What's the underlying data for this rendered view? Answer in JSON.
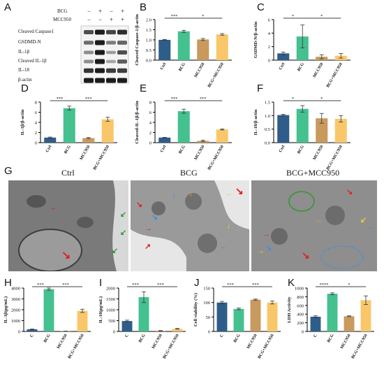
{
  "colors": {
    "ctrl": "#2e5d8a",
    "bcg": "#45c08f",
    "mcc950": "#c99a5d",
    "bcg_mcc950": "#f9c76a",
    "band": "#1c1c1c",
    "arrow_red": "#e02020",
    "arrow_green": "#2e9a2e",
    "arrow_blue": "#3a8fe0",
    "arrow_yellow": "#f2d21a"
  },
  "panel_letters": {
    "A": "A",
    "B": "B",
    "C": "C",
    "D": "D",
    "E": "E",
    "F": "F",
    "G": "G",
    "H": "H",
    "I": "I",
    "J": "J",
    "K": "K"
  },
  "western_blot": {
    "treatments": [
      {
        "label": "BCG",
        "marks": [
          "−",
          "+",
          "−",
          "+"
        ]
      },
      {
        "label": "MCC950",
        "marks": [
          "−",
          "−",
          "+",
          "+"
        ]
      }
    ],
    "rows": [
      {
        "label": "Cleaved Caspase1",
        "intensity": [
          0.7,
          1.0,
          0.75,
          0.9
        ]
      },
      {
        "label": "GSDMD-N",
        "intensity": [
          0.5,
          1.0,
          0.4,
          0.55
        ]
      },
      {
        "label": "IL-1β",
        "intensity": [
          0.3,
          1.0,
          0.2,
          0.7
        ]
      },
      {
        "label": "Cleaved IL-1β",
        "intensity": [
          0.3,
          1.0,
          0.15,
          0.6
        ]
      },
      {
        "label": "IL-18",
        "intensity": [
          0.85,
          1.0,
          0.8,
          0.8
        ]
      },
      {
        "label": "β-actin",
        "intensity": [
          1.0,
          1.0,
          1.0,
          1.0
        ]
      }
    ]
  },
  "tem": {
    "titles": [
      "Ctrl",
      "BCG",
      "BCG+MCC950"
    ]
  },
  "chart_data": [
    {
      "id": "B",
      "type": "bar",
      "categories": [
        "Ctrl",
        "BCG",
        "MCC950",
        "BCG+MCC950"
      ],
      "values": [
        1.0,
        1.42,
        1.02,
        1.27
      ],
      "errors": [
        0.02,
        0.05,
        0.05,
        0.04
      ],
      "ylabel": "Cleaved Caspase-1/β-actin",
      "ylim": [
        0,
        2.0
      ],
      "yticks": [
        "0.0",
        "0.5",
        "1.0",
        "1.5",
        "2.0"
      ],
      "sig": [
        {
          "from": 0,
          "to": 1,
          "label": "***"
        },
        {
          "from": 1,
          "to": 3,
          "label": "*"
        }
      ]
    },
    {
      "id": "C",
      "type": "bar",
      "categories": [
        "Ctrl",
        "BCG",
        "MCC950",
        "BCG+MCC950"
      ],
      "values": [
        1.0,
        3.5,
        0.5,
        0.65
      ],
      "errors": [
        0.2,
        1.7,
        0.3,
        0.35
      ],
      "ylabel": "GSDMD-N/β-actin",
      "ylim": [
        0,
        6
      ],
      "yticks": [
        "0",
        "2",
        "4",
        "6"
      ],
      "sig": [
        {
          "from": 0,
          "to": 1,
          "label": "*"
        },
        {
          "from": 1,
          "to": 3,
          "label": "*"
        }
      ]
    },
    {
      "id": "D",
      "type": "bar",
      "categories": [
        "Ctrl",
        "BCG",
        "MCC950",
        "BCG+MCC950"
      ],
      "values": [
        1.0,
        6.8,
        0.9,
        4.6
      ],
      "errors": [
        0.1,
        0.4,
        0.1,
        0.4
      ],
      "ylabel": "IL-1β/β-actin",
      "ylim": [
        0,
        8
      ],
      "yticks": [
        "0",
        "2",
        "4",
        "6",
        "8"
      ],
      "sig": [
        {
          "from": 0,
          "to": 1,
          "label": "***"
        },
        {
          "from": 1,
          "to": 3,
          "label": "***"
        }
      ]
    },
    {
      "id": "E",
      "type": "bar",
      "categories": [
        "Ctrl",
        "BCG",
        "MCC950",
        "BCG+MCC950"
      ],
      "values": [
        1.0,
        6.2,
        0.35,
        2.6
      ],
      "errors": [
        0.05,
        0.4,
        0.15,
        0.1
      ],
      "ylabel": "Cleaved-IL-1β/β-actin",
      "ylim": [
        0,
        8
      ],
      "yticks": [
        "0",
        "2",
        "4",
        "6",
        "8"
      ],
      "sig": [
        {
          "from": 0,
          "to": 1,
          "label": "***"
        },
        {
          "from": 1,
          "to": 3,
          "label": "***"
        }
      ]
    },
    {
      "id": "F",
      "type": "bar",
      "categories": [
        "Ctrl",
        "BCG",
        "MCC950",
        "BCG+MCC950"
      ],
      "values": [
        1.02,
        1.25,
        0.9,
        0.88
      ],
      "errors": [
        0.03,
        0.12,
        0.18,
        0.12
      ],
      "ylabel": "IL-18/β-actin",
      "ylim": [
        0,
        1.5
      ],
      "yticks": [
        "0.0",
        "0.5",
        "1.0",
        "1.5"
      ],
      "sig": [
        {
          "from": 0,
          "to": 1,
          "label": "*"
        },
        {
          "from": 1,
          "to": 3,
          "label": "*"
        }
      ]
    },
    {
      "id": "H",
      "type": "bar",
      "categories": [
        "C",
        "BCG",
        "MCC950",
        "BCG+MCC950"
      ],
      "values": [
        200,
        3900,
        20,
        1900
      ],
      "errors": [
        20,
        100,
        10,
        150
      ],
      "ylabel": "IL-1β(pg/mL)",
      "ylim": [
        0,
        4000
      ],
      "yticks": [
        "0",
        "1000",
        "2000",
        "3000",
        "4000"
      ],
      "sig": [
        {
          "from": 0,
          "to": 1,
          "label": "***"
        },
        {
          "from": 1,
          "to": 3,
          "label": "***"
        }
      ]
    },
    {
      "id": "I",
      "type": "bar",
      "categories": [
        "C",
        "BCG",
        "MCC950",
        "BCG+MCC950"
      ],
      "values": [
        480,
        1580,
        30,
        120
      ],
      "errors": [
        40,
        250,
        10,
        20
      ],
      "ylabel": "IL-18(pg/mL)",
      "ylim": [
        0,
        2000
      ],
      "yticks": [
        "0",
        "500",
        "1000",
        "1500",
        "2000"
      ],
      "sig": [
        {
          "from": 0,
          "to": 1,
          "label": "***"
        },
        {
          "from": 1,
          "to": 3,
          "label": "***"
        }
      ]
    },
    {
      "id": "J",
      "type": "bar",
      "categories": [
        "C",
        "BCG",
        "MCC950",
        "BCG+MCC950"
      ],
      "values": [
        100,
        78,
        110,
        100
      ],
      "errors": [
        4,
        3,
        2,
        5
      ],
      "ylabel": "Cell viability (%)",
      "ylim": [
        0,
        150
      ],
      "yticks": [
        "0",
        "50",
        "100",
        "150"
      ],
      "sig": [
        {
          "from": 0,
          "to": 1,
          "label": "***"
        },
        {
          "from": 1,
          "to": 3,
          "label": "***"
        }
      ]
    },
    {
      "id": "K",
      "type": "bar",
      "categories": [
        "C",
        "BCG",
        "MCC950",
        "BCG+MCC950"
      ],
      "values": [
        340,
        870,
        350,
        720
      ],
      "errors": [
        20,
        20,
        10,
        100
      ],
      "ylabel": "LDH Activity",
      "ylim": [
        0,
        1000
      ],
      "yticks": [
        "0",
        "200",
        "400",
        "600",
        "800",
        "1000"
      ],
      "sig": [
        {
          "from": 0,
          "to": 1,
          "label": "****"
        },
        {
          "from": 1,
          "to": 3,
          "label": "*"
        }
      ]
    }
  ]
}
